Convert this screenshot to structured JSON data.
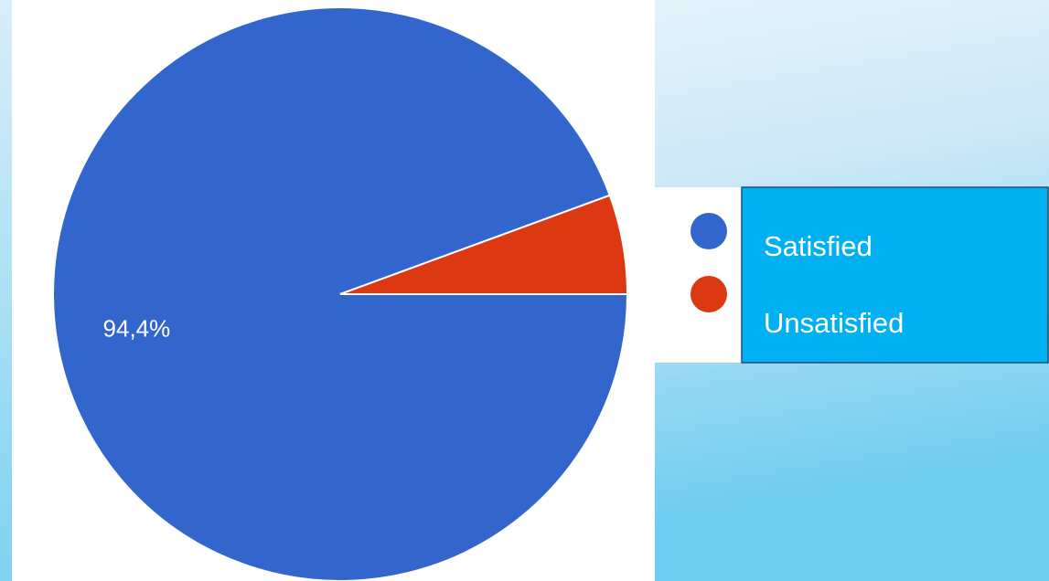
{
  "chart_data": {
    "type": "pie",
    "categories": [
      "Satisfied",
      "Unsatisfied"
    ],
    "values": [
      94.4,
      5.6
    ],
    "value_labels": [
      "94,4%",
      null
    ],
    "colors": [
      "#3366cc",
      "#dc3912"
    ]
  }
}
